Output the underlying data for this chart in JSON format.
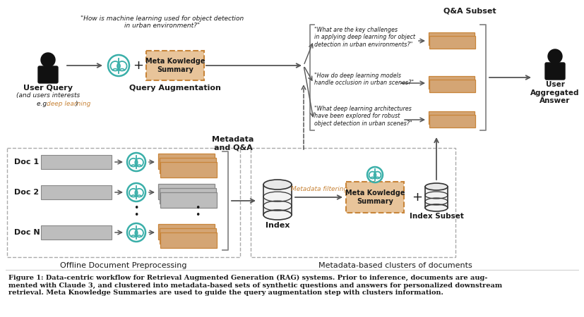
{
  "bg_color": "#ffffff",
  "tan_color": "#D4A574",
  "tan_edge": "#C8853A",
  "tan_light": "#E8C49A",
  "gray_bar": "#BDBDBD",
  "gray_bar_edge": "#888888",
  "teal": "#3AAFA9",
  "dark": "#1a1a1a",
  "arr": "#555555",
  "orange": "#C8853A",
  "bracket_color": "#888888",
  "query_text": "\"How is machine learning used for object detection\nin urban environment?\"",
  "meta_box_label": "Meta Kowledge\nSummary",
  "query_aug_label": "Query Augmentation",
  "user_query_label": "User Query",
  "user_query_sub1": "(and users interests",
  "user_query_sub2": "e.g. ",
  "user_query_sub2b": "deep learning",
  "user_query_sub2c": ")",
  "metadata_qa_label": "Metadata\nand Q&A",
  "offline_label": "Offline Document Preprocessing",
  "meta_clusters_label": "Metadata-based clusters of documents",
  "index_label": "Index",
  "index_subset_label": "Index Subset",
  "qa_subset_label": "Q&A Subset",
  "user_agg_label": "User\nAggregated\nAnswer",
  "meta_filter_label": "Metadata filtering",
  "q1": "\"What are the key challenges\nin applying deep learning for object\ndetection in urban environments?\"",
  "q2": "\"How do deep learning models\nhandle occlusion in urban scenes?\"",
  "q3": "\"What deep learning architectures\nhave been explored for robust\nobject detection in urban scenes?\"",
  "caption": "Figure 1: Data-centric workflow for Retrieval Augmented Generation (RAG) systems. Prior to inference, documents are aug-\nmented with Claude 3, and clustered into metadata-based sets of synthetic questions and answers for personalized downstream\nretrieval. Meta Knowledge Summaries are used to guide the query augmentation step with clusters information."
}
